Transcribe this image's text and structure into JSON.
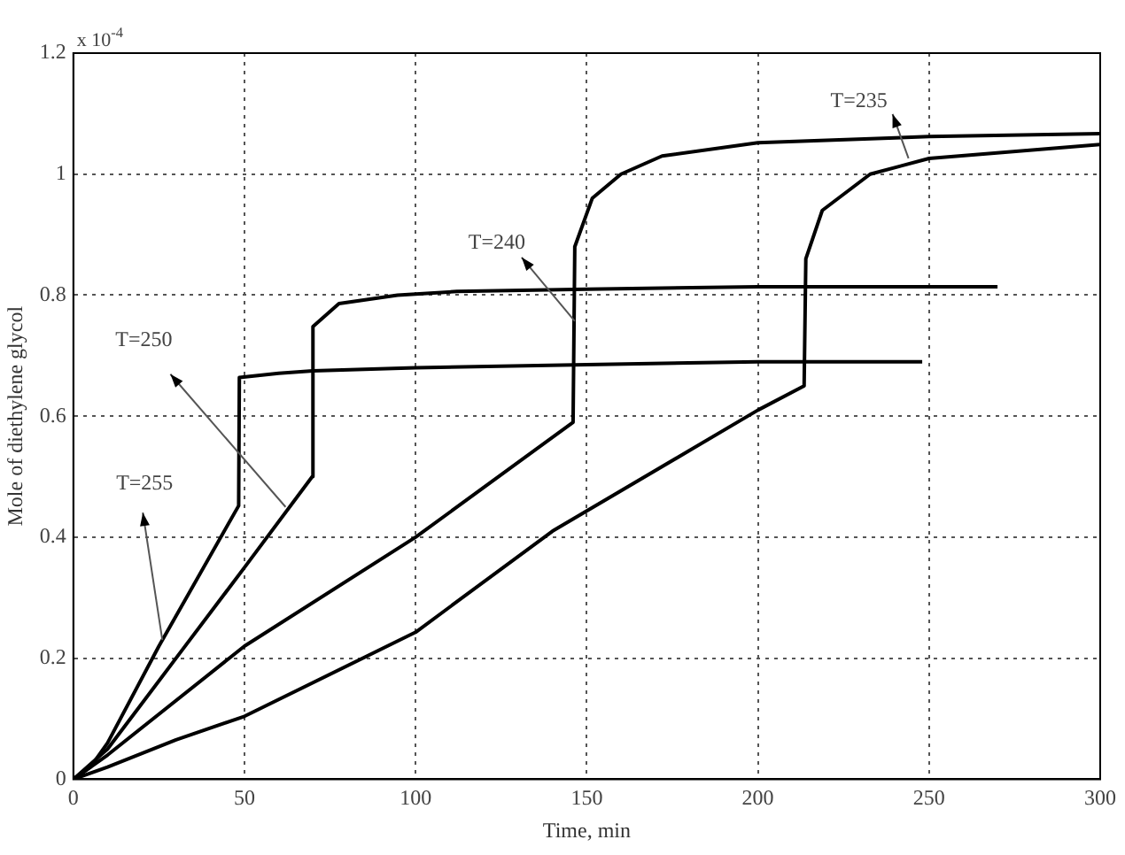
{
  "chart_data": {
    "type": "line",
    "xlabel": "Time, min",
    "ylabel": "Mole of diethylene glycol",
    "xlim": [
      0,
      300
    ],
    "ylim": [
      0,
      1.2
    ],
    "xticks": [
      0,
      50,
      100,
      150,
      200,
      250,
      300
    ],
    "yticks": [
      0,
      0.2,
      0.4,
      0.6,
      0.8,
      1,
      1.2
    ],
    "grid": true,
    "legend": false,
    "marker": "none",
    "line_style": "solid",
    "annotations": [
      "x 10$^{-4}$",
      {
        "text": "T=235",
        "x": 244,
        "y": 1.026
      },
      {
        "text": "T=240",
        "x": 146.5,
        "y": 0.757
      },
      {
        "text": "T=250",
        "x": 62,
        "y": 0.45
      },
      {
        "text": "T=255",
        "x": 26,
        "y": 0.23
      }
    ],
    "series": [
      {
        "color": "#000000",
        "x": [
          0,
          5,
          10,
          25,
          48.3,
          48.5,
          60,
          70,
          100,
          150,
          200,
          248
        ],
        "values": [
          0,
          0.02,
          0.06,
          0.22,
          0.452,
          0.664,
          0.671,
          0.675,
          0.68,
          0.685,
          0.69,
          0.69
        ]
      },
      {
        "color": "#000000",
        "x": [
          0,
          10,
          30,
          50,
          69.8,
          70,
          77.6,
          94.7,
          112,
          150,
          200,
          270
        ],
        "values": [
          0,
          0.05,
          0.2,
          0.35,
          0.5,
          0.748,
          0.786,
          0.8,
          0.806,
          0.81,
          0.814,
          0.814
        ]
      },
      {
        "color": "#000000",
        "x": [
          0,
          10,
          50,
          100,
          146,
          146.5,
          151.6,
          160,
          172,
          200,
          250,
          300
        ],
        "values": [
          0,
          0.04,
          0.22,
          0.4,
          0.59,
          0.88,
          0.96,
          1.0,
          1.03,
          1.052,
          1.062,
          1.067
        ]
      },
      {
        "color": "#000000",
        "x": [
          0,
          10,
          30,
          50,
          100,
          140,
          200,
          213.5,
          214,
          218.8,
          232.8,
          250,
          300
        ],
        "values": [
          0,
          0.02,
          0.065,
          0.104,
          0.243,
          0.41,
          0.61,
          0.65,
          0.86,
          0.94,
          1.0,
          1.026,
          1.049
        ]
      }
    ]
  }
}
